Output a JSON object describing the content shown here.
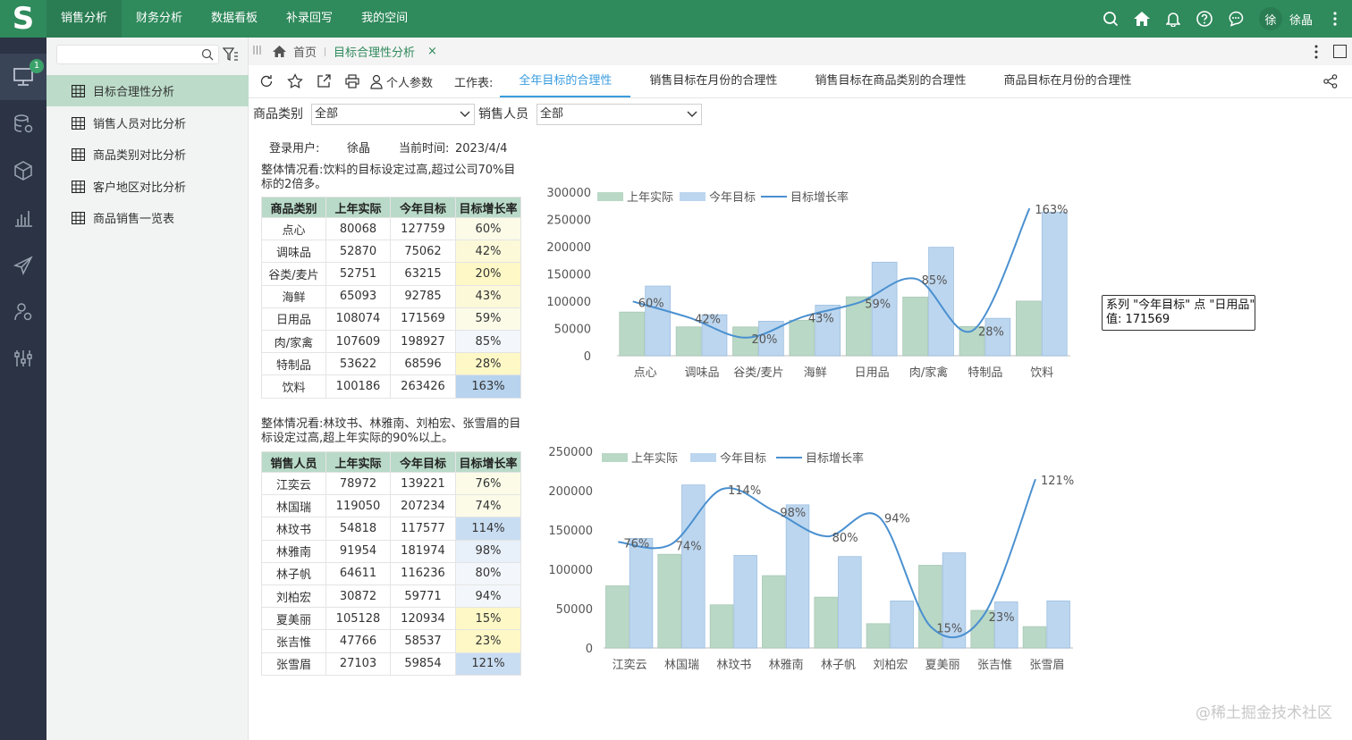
{
  "topbar": {
    "logo": "S",
    "menu": [
      "销售分析",
      "财务分析",
      "数据看板",
      "补录回写",
      "我的空间"
    ],
    "avatar": "徐",
    "user": "徐晶"
  },
  "rail": {
    "badge": "1"
  },
  "sidebar": {
    "search_placeholder": "",
    "items": [
      "目标合理性分析",
      "销售人员对比分析",
      "商品类别对比分析",
      "客户地区对比分析",
      "商品销售一览表"
    ]
  },
  "tabs": {
    "home": "首页",
    "active": "目标合理性分析",
    "close": "×"
  },
  "toolbar": {
    "personal": "个人参数",
    "sheet_label": "工作表:",
    "sheets": [
      "全年目标的合理性",
      "销售目标在月份的合理性",
      "销售目标在商品类别的合理性",
      "商品目标在月份的合理性"
    ]
  },
  "filters": {
    "category_label": "商品类别",
    "category_value": "全部",
    "seller_label": "销售人员",
    "seller_value": "全部"
  },
  "info": {
    "user_label": "登录用户:",
    "user": "徐晶",
    "time_label": "当前时间:",
    "time": "2023/4/4"
  },
  "summary1": "整体情况看:饮料的目标设定过高,超过公司70%目标的2倍多。",
  "summary2": "整体情况看:林玟书、林雅南、刘柏宏、张雪眉的目标设定过高,超上年实际的90%以上。",
  "table1": {
    "headers": [
      "商品类别",
      "上年实际",
      "今年目标",
      "目标增长率"
    ],
    "rows": [
      [
        "点心",
        "80068",
        "127759",
        "60%"
      ],
      [
        "调味品",
        "52870",
        "75062",
        "42%"
      ],
      [
        "谷类/麦片",
        "52751",
        "63215",
        "20%"
      ],
      [
        "海鲜",
        "65093",
        "92785",
        "43%"
      ],
      [
        "日用品",
        "108074",
        "171569",
        "59%"
      ],
      [
        "肉/家禽",
        "107609",
        "198927",
        "85%"
      ],
      [
        "特制品",
        "53622",
        "68596",
        "28%"
      ],
      [
        "饮料",
        "100186",
        "263426",
        "163%"
      ]
    ]
  },
  "table2": {
    "headers": [
      "销售人员",
      "上年实际",
      "今年目标",
      "目标增长率"
    ],
    "rows": [
      [
        "江奕云",
        "78972",
        "139221",
        "76%"
      ],
      [
        "林国瑞",
        "119050",
        "207234",
        "74%"
      ],
      [
        "林玟书",
        "54818",
        "117577",
        "114%"
      ],
      [
        "林雅南",
        "91954",
        "181974",
        "98%"
      ],
      [
        "林子帆",
        "64611",
        "116236",
        "80%"
      ],
      [
        "刘柏宏",
        "30872",
        "59771",
        "94%"
      ],
      [
        "夏美丽",
        "105128",
        "120934",
        "15%"
      ],
      [
        "张吉惟",
        "47766",
        "58537",
        "23%"
      ],
      [
        "张雪眉",
        "27103",
        "59854",
        "121%"
      ]
    ]
  },
  "colors": {
    "green": "#b9d8c6",
    "blue": "#bcd6ef",
    "line": "#4a90d0",
    "topbar": "#2f8a5c"
  },
  "chart_data": [
    {
      "type": "bar",
      "title": "",
      "legend": [
        "上年实际",
        "今年目标",
        "目标增长率"
      ],
      "legend_position": "top-left",
      "categories": [
        "点心",
        "调味品",
        "谷类/麦片",
        "海鲜",
        "日用品",
        "肉/家禽",
        "特制品",
        "饮料"
      ],
      "series": [
        {
          "name": "上年实际",
          "values": [
            80068,
            52870,
            52751,
            65093,
            108074,
            107609,
            53622,
            100186
          ]
        },
        {
          "name": "今年目标",
          "values": [
            127759,
            75062,
            63215,
            92785,
            171569,
            198927,
            68596,
            263426
          ]
        },
        {
          "name": "目标增长率",
          "type": "line",
          "values": [
            60,
            42,
            20,
            43,
            59,
            85,
            28,
            163
          ]
        }
      ],
      "yticks": [
        "0",
        "50000",
        "100000",
        "150000",
        "200000",
        "250000",
        "300000"
      ],
      "ylim": [
        0,
        300000
      ],
      "y2lim": [
        0,
        181
      ],
      "tooltip": {
        "line1": "系列 \"今年目标\" 点 \"日用品\"",
        "line2": "值: 171569"
      }
    },
    {
      "type": "bar",
      "title": "",
      "legend": [
        "上年实际",
        "今年目标",
        "目标增长率"
      ],
      "legend_position": "top-left",
      "categories": [
        "江奕云",
        "林国瑞",
        "林玟书",
        "林雅南",
        "林子帆",
        "刘柏宏",
        "夏美丽",
        "张吉惟",
        "张雪眉"
      ],
      "series": [
        {
          "name": "上年实际",
          "values": [
            78972,
            119050,
            54818,
            91954,
            64611,
            30872,
            105128,
            47766,
            27103
          ]
        },
        {
          "name": "今年目标",
          "values": [
            139221,
            207234,
            117577,
            181974,
            116236,
            59771,
            120934,
            58537,
            59854
          ]
        },
        {
          "name": "目标增长率",
          "type": "line",
          "values": [
            76,
            74,
            114,
            98,
            80,
            94,
            15,
            23,
            121
          ]
        }
      ],
      "yticks": [
        "0",
        "50000",
        "100000",
        "150000",
        "200000",
        "250000"
      ],
      "ylim": [
        0,
        250000
      ],
      "y2lim": [
        0,
        141
      ]
    }
  ],
  "watermark": "@稀土掘金技术社区"
}
